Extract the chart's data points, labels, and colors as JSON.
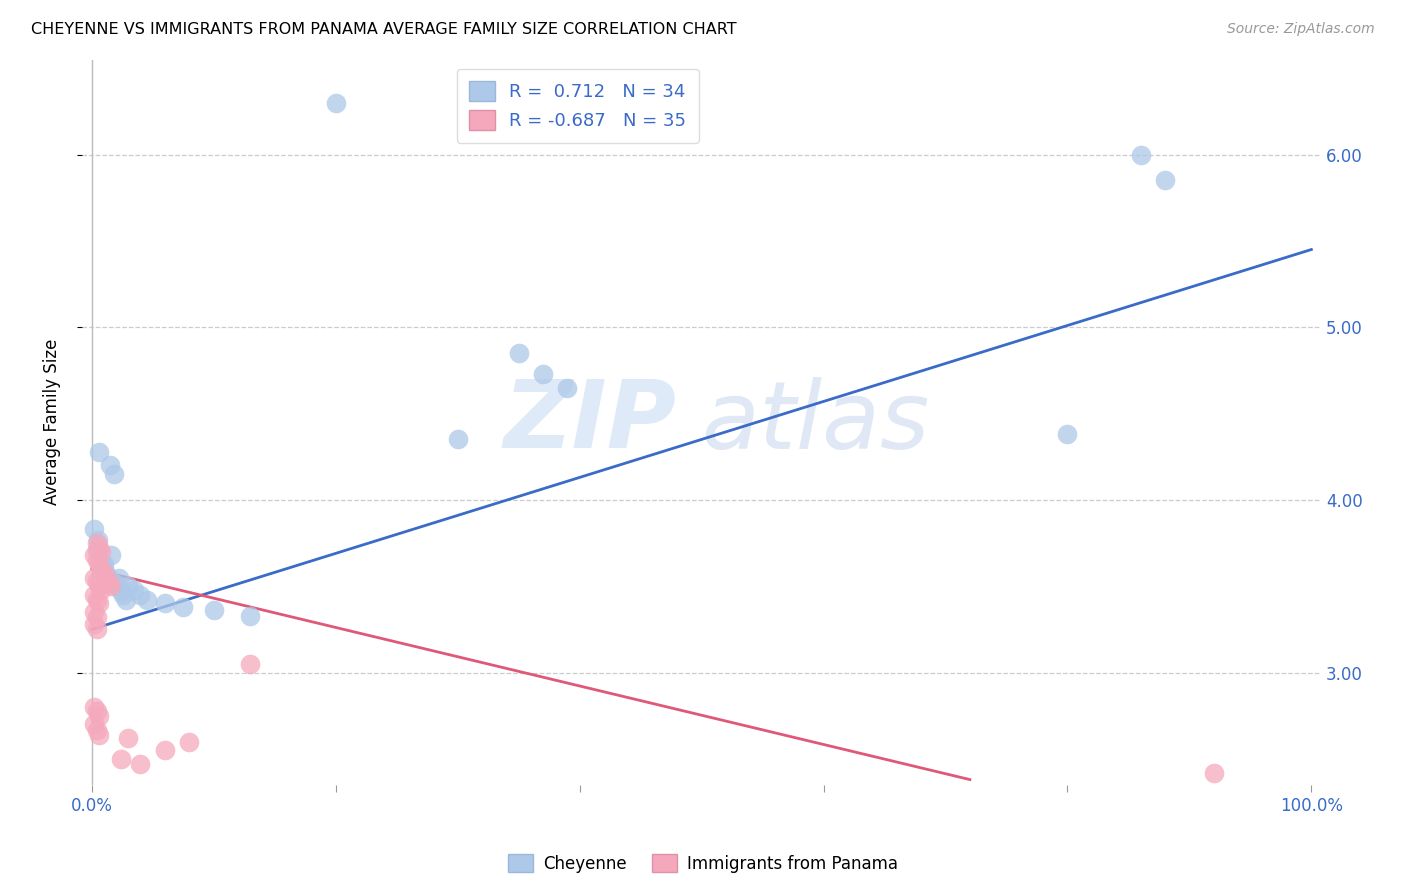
{
  "title": "CHEYENNE VS IMMIGRANTS FROM PANAMA AVERAGE FAMILY SIZE CORRELATION CHART",
  "source": "Source: ZipAtlas.com",
  "ylabel": "Average Family Size",
  "yticks": [
    3.0,
    4.0,
    5.0,
    6.0
  ],
  "ylim": [
    2.35,
    6.55
  ],
  "xlim": [
    -0.008,
    1.008
  ],
  "legend_label1": "Cheyenne",
  "legend_label2": "Immigrants from Panama",
  "blue_color": "#adc8e8",
  "pink_color": "#f5a8bc",
  "blue_line_color": "#3a6bc8",
  "pink_line_color": "#e05878",
  "blue_scatter": [
    [
      0.002,
      3.83
    ],
    [
      0.004,
      3.71
    ],
    [
      0.006,
      4.28
    ],
    [
      0.008,
      3.63
    ],
    [
      0.01,
      3.6
    ],
    [
      0.012,
      3.57
    ],
    [
      0.014,
      3.55
    ],
    [
      0.016,
      3.68
    ],
    [
      0.018,
      3.52
    ],
    [
      0.02,
      3.5
    ],
    [
      0.022,
      3.55
    ],
    [
      0.024,
      3.47
    ],
    [
      0.026,
      3.45
    ],
    [
      0.028,
      3.42
    ],
    [
      0.03,
      3.5
    ],
    [
      0.035,
      3.48
    ],
    [
      0.04,
      3.45
    ],
    [
      0.045,
      3.42
    ],
    [
      0.06,
      3.4
    ],
    [
      0.075,
      3.38
    ],
    [
      0.1,
      3.36
    ],
    [
      0.13,
      3.33
    ],
    [
      0.005,
      3.77
    ],
    [
      0.01,
      3.63
    ],
    [
      0.015,
      4.2
    ],
    [
      0.018,
      4.15
    ],
    [
      0.3,
      4.35
    ],
    [
      0.35,
      4.85
    ],
    [
      0.37,
      4.73
    ],
    [
      0.39,
      4.65
    ],
    [
      0.8,
      4.38
    ],
    [
      0.86,
      6.0
    ],
    [
      0.88,
      5.85
    ],
    [
      0.2,
      6.3
    ]
  ],
  "pink_scatter": [
    [
      0.002,
      3.68
    ],
    [
      0.004,
      3.65
    ],
    [
      0.006,
      3.62
    ],
    [
      0.008,
      3.6
    ],
    [
      0.01,
      3.57
    ],
    [
      0.012,
      3.55
    ],
    [
      0.014,
      3.52
    ],
    [
      0.016,
      3.5
    ],
    [
      0.004,
      3.75
    ],
    [
      0.006,
      3.72
    ],
    [
      0.008,
      3.7
    ],
    [
      0.002,
      3.55
    ],
    [
      0.004,
      3.53
    ],
    [
      0.006,
      3.5
    ],
    [
      0.008,
      3.48
    ],
    [
      0.002,
      3.45
    ],
    [
      0.004,
      3.42
    ],
    [
      0.006,
      3.4
    ],
    [
      0.002,
      3.35
    ],
    [
      0.004,
      3.32
    ],
    [
      0.002,
      3.28
    ],
    [
      0.004,
      3.25
    ],
    [
      0.002,
      2.8
    ],
    [
      0.004,
      2.78
    ],
    [
      0.006,
      2.75
    ],
    [
      0.002,
      2.7
    ],
    [
      0.004,
      2.67
    ],
    [
      0.006,
      2.64
    ],
    [
      0.13,
      3.05
    ],
    [
      0.03,
      2.62
    ],
    [
      0.06,
      2.55
    ],
    [
      0.08,
      2.6
    ],
    [
      0.024,
      2.5
    ],
    [
      0.04,
      2.47
    ],
    [
      0.92,
      2.42
    ]
  ],
  "blue_line": [
    [
      0.0,
      3.25
    ],
    [
      1.0,
      5.45
    ]
  ],
  "pink_line": [
    [
      0.0,
      3.6
    ],
    [
      0.72,
      2.38
    ]
  ]
}
